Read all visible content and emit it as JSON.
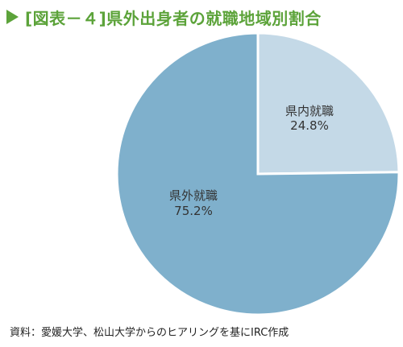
{
  "title": "[図表－４]県外出身者の就職地域別割合",
  "source": "資料：愛媛大学、松山大学からのヒアリングを基にIRC作成",
  "colors": {
    "title": "#5ca33a",
    "slice_kennai": "#c4d9e7",
    "slice_kengai": "#7fb0cc",
    "slice_border": "#ffffff"
  },
  "chart_data": {
    "type": "pie",
    "slices": [
      {
        "label": "県内就職",
        "value": 24.8,
        "value_text": "24.8%",
        "color": "#c4d9e7"
      },
      {
        "label": "県外就職",
        "value": 75.2,
        "value_text": "75.2%",
        "color": "#7fb0cc"
      }
    ],
    "start_angle": "12 o'clock",
    "direction": "clockwise"
  }
}
